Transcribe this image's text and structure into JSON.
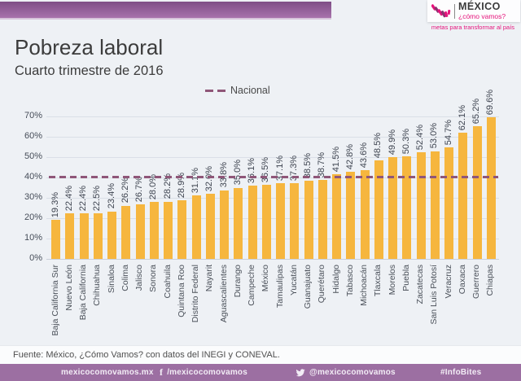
{
  "logo": {
    "brand": "MÉXICO",
    "question": "¿cómo vamos?",
    "motto": "metas para transformar al país"
  },
  "title": "Pobreza laboral",
  "subtitle": "Cuarto trimestre de 2016",
  "chart_data": {
    "type": "bar",
    "title": "Pobreza laboral",
    "subtitle": "Cuarto trimestre de 2016",
    "categories": [
      "Baja California Sur",
      "Nuevo León",
      "Baja California",
      "Chihuahua",
      "Sinaloa",
      "Colima",
      "Jalisco",
      "Sonora",
      "Coahuila",
      "Quintana Roo",
      "Distrito Federal",
      "Nayarit",
      "Aguascalientes",
      "Durango",
      "Campeche",
      "México",
      "Tamaulipas",
      "Yucatán",
      "Guanajuato",
      "Querétaro",
      "Hidalgo",
      "Tabasco",
      "Michoacán",
      "Tlaxcala",
      "Morelos",
      "Puebla",
      "Zacatecas",
      "San Luis Potosí",
      "Veracruz",
      "Oaxaca",
      "Guerrero",
      "Chiapas"
    ],
    "values": [
      19.3,
      22.4,
      22.4,
      22.5,
      23.4,
      26.2,
      26.7,
      28.0,
      28.2,
      28.9,
      31.1,
      32.0,
      33.8,
      35.0,
      36.1,
      36.5,
      37.1,
      37.3,
      38.5,
      38.7,
      41.5,
      42.8,
      43.6,
      48.5,
      49.9,
      50.3,
      52.4,
      53.0,
      54.7,
      62.1,
      65.2,
      69.6
    ],
    "value_suffix": "%",
    "national_line": {
      "label": "Nacional",
      "value": 40,
      "color": "#8f5678"
    },
    "y_axis": {
      "min": 0,
      "max": 70,
      "step": 10,
      "tick_suffix": "%"
    },
    "xlabel": "",
    "ylabel": "",
    "grid": true,
    "legend_position": "top",
    "bar_color": "#f6b63e"
  },
  "footer": {
    "source": "Fuente: México, ¿Cómo Vamos? con datos del INEGI y CONEVAL."
  },
  "footer_bar": {
    "website": "mexicocomovamos.mx",
    "facebook_icon": "f",
    "facebook": "/mexicocomovamos",
    "twitter": "@mexicocomovamos",
    "hashtag": "#InfoBites"
  },
  "colors": {
    "header_gradient_top": "#7e4d85",
    "header_gradient_bottom": "#a873ac",
    "footer_bar_bg": "#9c6fa2",
    "brand_magenta": "#e5137b",
    "bar": "#f6b63e",
    "national_line": "#8f5678"
  }
}
